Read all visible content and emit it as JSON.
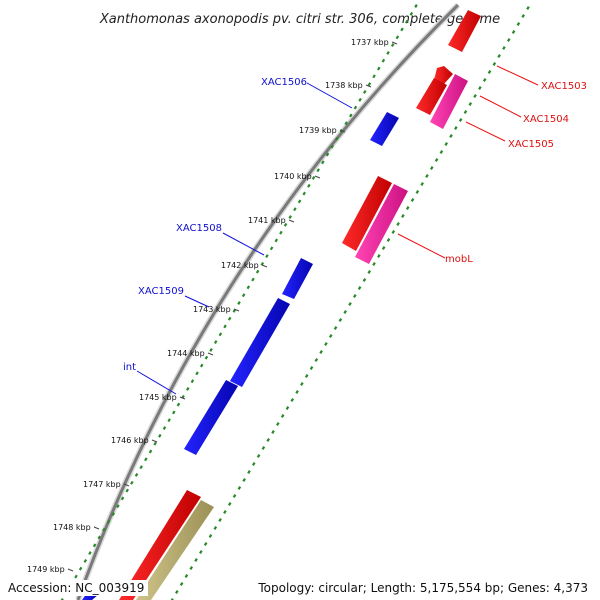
{
  "title": "Xanthomonas axonopodis pv. citri str. 306, complete genome",
  "footer": {
    "accession": "Accession: NC_003919",
    "summary": "Topology: circular; Length: 5,175,554 bp; Genes: 4,373"
  },
  "colors": {
    "backbone": "#777777",
    "plus_strand_dots": "#2a8a2a",
    "minus_strand_dots": "#2a8a2a",
    "forward_genes": "#1010dd",
    "reverse_genes": "#ee1111",
    "mobile_element_genes": "#ee2299",
    "other_genes": "#b8ad70",
    "forward_label": "#1010cc",
    "reverse_label": "#dd1111"
  },
  "ticks": [
    {
      "label": "1737 kbp"
    },
    {
      "label": "1738 kbp"
    },
    {
      "label": "1739 kbp"
    },
    {
      "label": "1740 kbp"
    },
    {
      "label": "1741 kbp"
    },
    {
      "label": "1742 kbp"
    },
    {
      "label": "1743 kbp"
    },
    {
      "label": "1744 kbp"
    },
    {
      "label": "1745 kbp"
    },
    {
      "label": "1746 kbp"
    },
    {
      "label": "1747 kbp"
    },
    {
      "label": "1748 kbp"
    },
    {
      "label": "1749 kbp"
    }
  ],
  "gene_labels": [
    {
      "text": "XAC1503",
      "strand": "reverse"
    },
    {
      "text": "XAC1504",
      "strand": "reverse"
    },
    {
      "text": "XAC1505",
      "strand": "reverse"
    },
    {
      "text": "mobL",
      "strand": "reverse"
    },
    {
      "text": "XAC1506",
      "strand": "forward"
    },
    {
      "text": "XAC1508",
      "strand": "forward"
    },
    {
      "text": "XAC1509",
      "strand": "forward"
    },
    {
      "text": "int",
      "strand": "forward"
    }
  ]
}
